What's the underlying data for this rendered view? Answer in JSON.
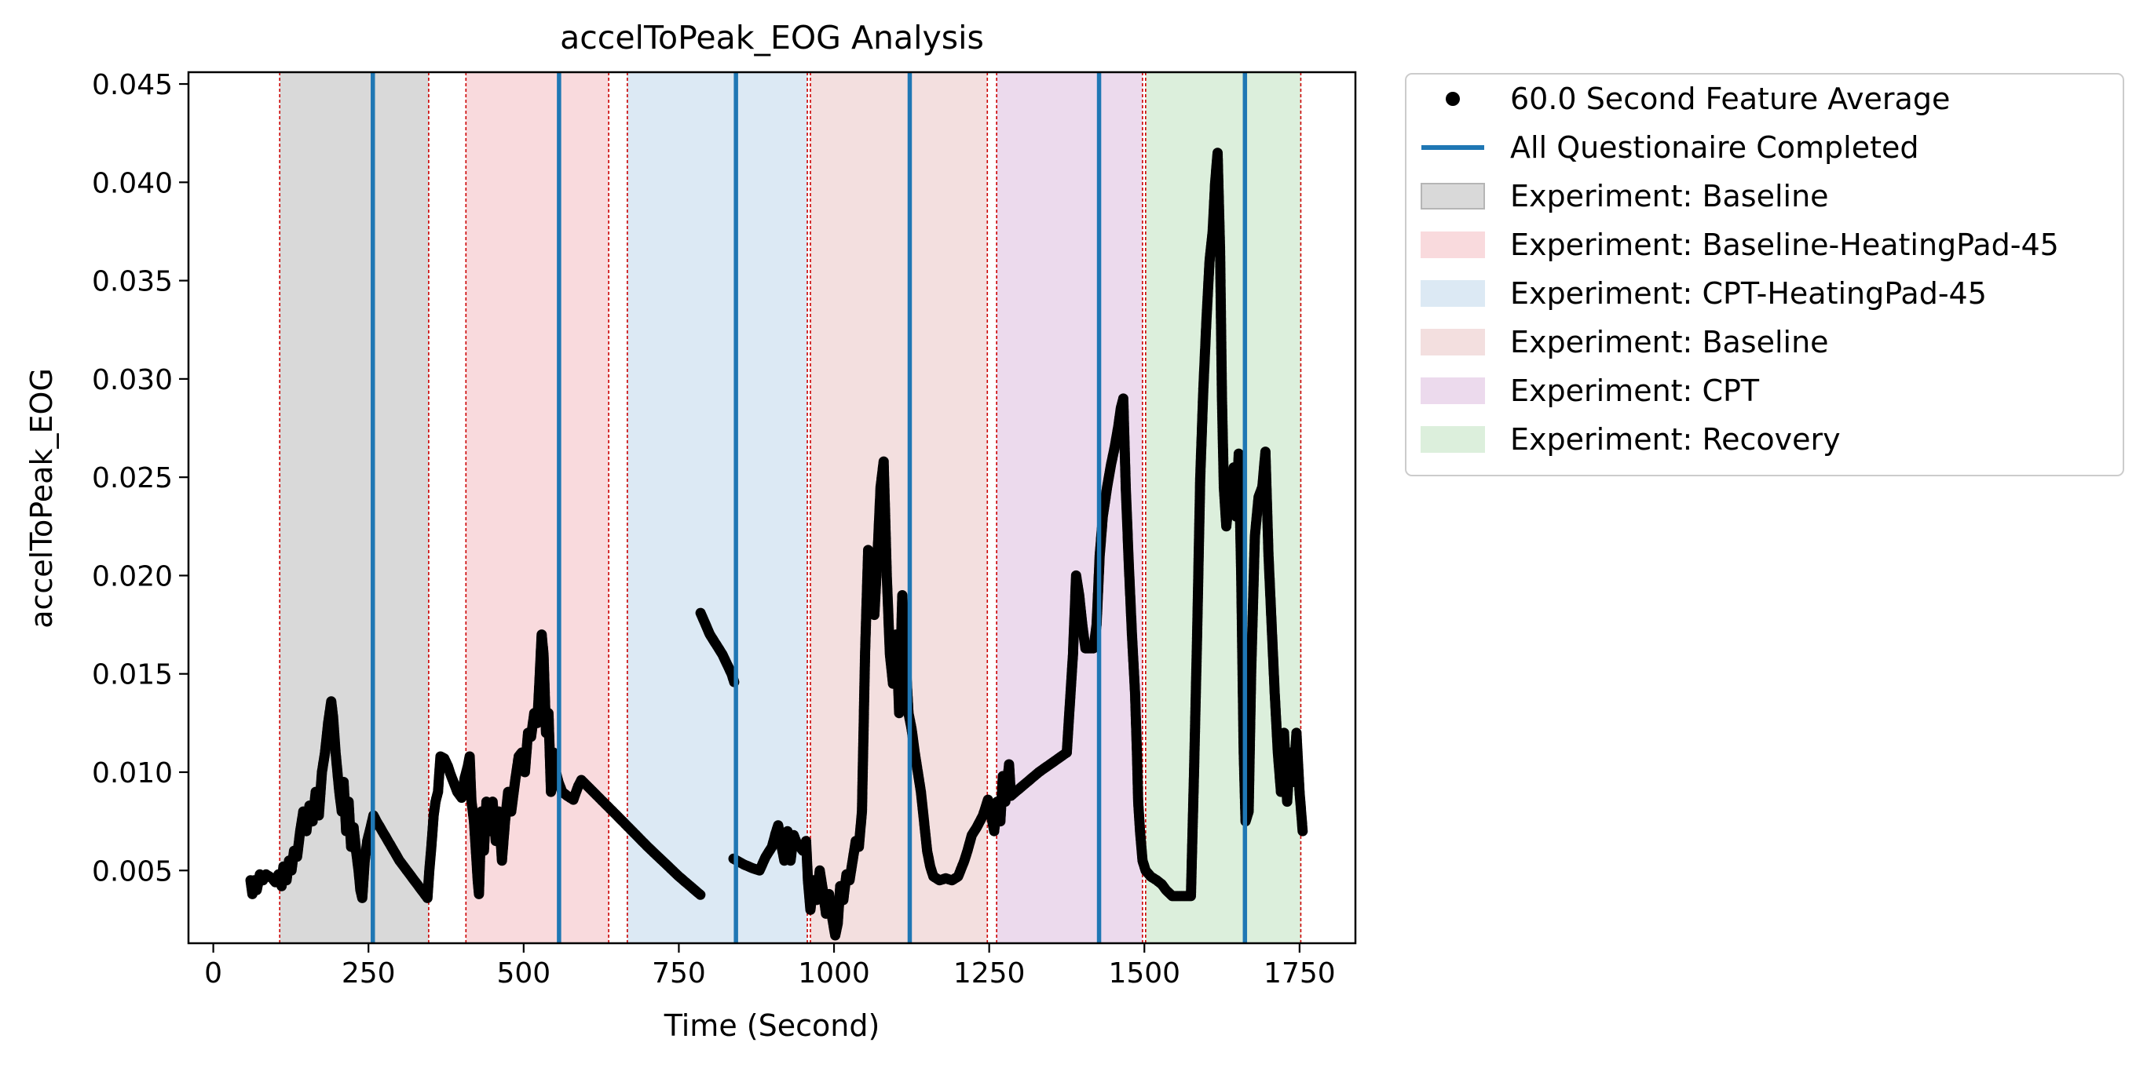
{
  "chart_data": {
    "type": "scatter",
    "title": "accelToPeak_EOG Analysis",
    "xlabel": "Time (Second)",
    "ylabel": "accelToPeak_EOG",
    "xlim": [
      -40,
      1840
    ],
    "ylim": [
      0.0013,
      0.0456
    ],
    "xticks": [
      0,
      250,
      500,
      750,
      1000,
      1250,
      1500,
      1750
    ],
    "xtick_labels": [
      "0",
      "250",
      "500",
      "750",
      "1000",
      "1250",
      "1500",
      "1750"
    ],
    "yticks": [
      0.005,
      0.01,
      0.015,
      0.02,
      0.025,
      0.03,
      0.035,
      0.04,
      0.045
    ],
    "ytick_labels": [
      "0.005",
      "0.010",
      "0.015",
      "0.020",
      "0.025",
      "0.030",
      "0.035",
      "0.040",
      "0.045"
    ],
    "grid": false,
    "legend_position": "outside-right-top",
    "legend": [
      {
        "label": "60.0 Second Feature Average",
        "kind": "marker",
        "color": "#000000"
      },
      {
        "label": "All Questionaire Completed",
        "kind": "line",
        "color": "#1f77b4"
      },
      {
        "label": "Experiment: Baseline",
        "kind": "patch",
        "color": "#d9d9d9"
      },
      {
        "label": "Experiment: Baseline-HeatingPad-45",
        "kind": "patch",
        "color": "#f9dadd"
      },
      {
        "label": "Experiment: CPT-HeatingPad-45",
        "kind": "patch",
        "color": "#dce9f4"
      },
      {
        "label": "Experiment: Baseline",
        "kind": "patch",
        "color": "#f3dfdf"
      },
      {
        "label": "Experiment: CPT",
        "kind": "patch",
        "color": "#ecdaed"
      },
      {
        "label": "Experiment: Recovery",
        "kind": "patch",
        "color": "#dcefdc"
      }
    ],
    "regions": [
      {
        "label": "Experiment: Baseline",
        "start": 107,
        "end": 347,
        "color": "#d9d9d9"
      },
      {
        "label": "Experiment: Baseline-HeatingPad-45",
        "start": 407,
        "end": 637,
        "color": "#f9dadd"
      },
      {
        "label": "Experiment: CPT-HeatingPad-45",
        "start": 667,
        "end": 957,
        "color": "#dce9f4"
      },
      {
        "label": "Experiment: Baseline",
        "start": 962,
        "end": 1247,
        "color": "#f3dfdf"
      },
      {
        "label": "Experiment: CPT",
        "start": 1262,
        "end": 1497,
        "color": "#ecdaed"
      },
      {
        "label": "Experiment: Recovery",
        "start": 1502,
        "end": 1752,
        "color": "#dcefdc"
      }
    ],
    "questionnaire_lines": [
      257,
      557,
      842,
      1122,
      1427,
      1662
    ],
    "series": [
      {
        "name": "60.0 Second Feature Average",
        "color": "#000000",
        "polyline": [
          [
            60,
            0.0045
          ],
          [
            63,
            0.0038
          ],
          [
            66,
            0.0045
          ],
          [
            70,
            0.004
          ],
          [
            75,
            0.0048
          ],
          [
            80,
            0.0045
          ],
          [
            85,
            0.0048
          ],
          [
            90,
            0.0047
          ],
          [
            95,
            0.0046
          ],
          [
            100,
            0.0044
          ],
          [
            105,
            0.0048
          ],
          [
            110,
            0.0042
          ],
          [
            113,
            0.0052
          ],
          [
            118,
            0.0045
          ],
          [
            122,
            0.0055
          ],
          [
            126,
            0.005
          ],
          [
            130,
            0.006
          ],
          [
            135,
            0.0057
          ],
          [
            140,
            0.007
          ],
          [
            145,
            0.008
          ],
          [
            150,
            0.007
          ],
          [
            155,
            0.0083
          ],
          [
            160,
            0.0075
          ],
          [
            165,
            0.009
          ],
          [
            170,
            0.0078
          ],
          [
            175,
            0.01
          ],
          [
            180,
            0.011
          ],
          [
            185,
            0.0125
          ],
          [
            190,
            0.0136
          ],
          [
            193,
            0.0128
          ],
          [
            197,
            0.011
          ],
          [
            200,
            0.01
          ],
          [
            203,
            0.009
          ],
          [
            207,
            0.008
          ],
          [
            210,
            0.0095
          ],
          [
            214,
            0.007
          ],
          [
            218,
            0.0085
          ],
          [
            222,
            0.0062
          ],
          [
            226,
            0.0072
          ],
          [
            230,
            0.006
          ],
          [
            234,
            0.005
          ],
          [
            237,
            0.004
          ],
          [
            240,
            0.0036
          ],
          [
            244,
            0.0055
          ],
          [
            248,
            0.0065
          ],
          [
            252,
            0.007
          ],
          [
            258,
            0.0078
          ],
          [
            263,
            0.0075
          ],
          [
            300,
            0.0055
          ],
          [
            345,
            0.0036
          ],
          [
            348,
            0.005
          ],
          [
            352,
            0.0065
          ],
          [
            355,
            0.0078
          ],
          [
            358,
            0.0085
          ],
          [
            362,
            0.009
          ],
          [
            366,
            0.0108
          ],
          [
            372,
            0.0107
          ],
          [
            378,
            0.0103
          ],
          [
            382,
            0.0099
          ],
          [
            387,
            0.0095
          ],
          [
            393,
            0.009
          ],
          [
            400,
            0.0087
          ],
          [
            405,
            0.0097
          ],
          [
            410,
            0.0103
          ],
          [
            413,
            0.0108
          ],
          [
            416,
            0.0085
          ],
          [
            420,
            0.0075
          ],
          [
            423,
            0.006
          ],
          [
            426,
            0.0045
          ],
          [
            428,
            0.0038
          ],
          [
            432,
            0.008
          ],
          [
            436,
            0.006
          ],
          [
            440,
            0.0085
          ],
          [
            445,
            0.007
          ],
          [
            450,
            0.0085
          ],
          [
            455,
            0.0065
          ],
          [
            460,
            0.008
          ],
          [
            465,
            0.0055
          ],
          [
            470,
            0.0075
          ],
          [
            475,
            0.009
          ],
          [
            480,
            0.008
          ],
          [
            486,
            0.0095
          ],
          [
            492,
            0.0108
          ],
          [
            497,
            0.011
          ],
          [
            502,
            0.01
          ],
          [
            507,
            0.012
          ],
          [
            512,
            0.0118
          ],
          [
            517,
            0.013
          ],
          [
            522,
            0.0125
          ],
          [
            526,
            0.015
          ],
          [
            529,
            0.017
          ],
          [
            532,
            0.016
          ],
          [
            536,
            0.012
          ],
          [
            540,
            0.013
          ],
          [
            544,
            0.009
          ],
          [
            548,
            0.011
          ],
          [
            552,
            0.01
          ],
          [
            556,
            0.0095
          ],
          [
            562,
            0.009
          ],
          [
            570,
            0.0088
          ],
          [
            580,
            0.0086
          ],
          [
            588,
            0.0093
          ],
          [
            593,
            0.0096
          ],
          [
            650,
            0.0078
          ],
          [
            700,
            0.0062
          ],
          [
            750,
            0.0047
          ],
          [
            787,
            0.0037
          ],
          [
            null,
            null
          ],
          [
            785,
            0.0181
          ],
          [
            800,
            0.017
          ],
          [
            820,
            0.016
          ],
          [
            835,
            0.015
          ],
          [
            840,
            0.0145
          ],
          [
            null,
            null
          ],
          [
            838,
            0.0056
          ],
          [
            855,
            0.0053
          ],
          [
            870,
            0.0051
          ],
          [
            880,
            0.005
          ],
          [
            890,
            0.0057
          ],
          [
            900,
            0.0062
          ],
          [
            906,
            0.0069
          ],
          [
            910,
            0.0073
          ],
          [
            915,
            0.0063
          ],
          [
            920,
            0.0055
          ],
          [
            925,
            0.007
          ],
          [
            930,
            0.0055
          ],
          [
            935,
            0.0068
          ],
          [
            940,
            0.0064
          ],
          [
            945,
            0.0062
          ],
          [
            950,
            0.006
          ],
          [
            955,
            0.0065
          ],
          [
            958,
            0.0045
          ],
          [
            962,
            0.003
          ],
          [
            967,
            0.0045
          ],
          [
            972,
            0.0035
          ],
          [
            977,
            0.005
          ],
          [
            982,
            0.004
          ],
          [
            987,
            0.0028
          ],
          [
            992,
            0.0038
          ],
          [
            997,
            0.0026
          ],
          [
            1002,
            0.0017
          ],
          [
            1006,
            0.0023
          ],
          [
            1010,
            0.0042
          ],
          [
            1015,
            0.0035
          ],
          [
            1020,
            0.0048
          ],
          [
            1025,
            0.0045
          ],
          [
            1030,
            0.0055
          ],
          [
            1035,
            0.0065
          ],
          [
            1040,
            0.0062
          ],
          [
            1045,
            0.008
          ],
          [
            1050,
            0.016
          ],
          [
            1055,
            0.0213
          ],
          [
            1060,
            0.02
          ],
          [
            1065,
            0.018
          ],
          [
            1070,
            0.021
          ],
          [
            1075,
            0.0245
          ],
          [
            1080,
            0.0258
          ],
          [
            1085,
            0.02
          ],
          [
            1090,
            0.016
          ],
          [
            1095,
            0.0145
          ],
          [
            1100,
            0.017
          ],
          [
            1105,
            0.013
          ],
          [
            1110,
            0.019
          ],
          [
            1115,
            0.016
          ],
          [
            1120,
            0.013
          ],
          [
            1125,
            0.0122
          ],
          [
            1130,
            0.011
          ],
          [
            1135,
            0.01
          ],
          [
            1140,
            0.009
          ],
          [
            1145,
            0.0075
          ],
          [
            1150,
            0.006
          ],
          [
            1155,
            0.0052
          ],
          [
            1160,
            0.0047
          ],
          [
            1170,
            0.0045
          ],
          [
            1180,
            0.0046
          ],
          [
            1190,
            0.0045
          ],
          [
            1200,
            0.0047
          ],
          [
            1210,
            0.0055
          ],
          [
            1215,
            0.006
          ],
          [
            1222,
            0.0068
          ],
          [
            1230,
            0.0072
          ],
          [
            1240,
            0.0078
          ],
          [
            1248,
            0.0086
          ],
          [
            1252,
            0.008
          ],
          [
            1258,
            0.007
          ],
          [
            1263,
            0.0085
          ],
          [
            1268,
            0.0075
          ],
          [
            1272,
            0.0098
          ],
          [
            1276,
            0.0085
          ],
          [
            1282,
            0.0104
          ],
          [
            1285,
            0.0088
          ],
          [
            1330,
            0.01
          ],
          [
            1375,
            0.011
          ],
          [
            1380,
            0.0135
          ],
          [
            1385,
            0.016
          ],
          [
            1390,
            0.02
          ],
          [
            1395,
            0.019
          ],
          [
            1400,
            0.0175
          ],
          [
            1405,
            0.0163
          ],
          [
            1410,
            0.0163
          ],
          [
            1418,
            0.0163
          ],
          [
            1423,
            0.0175
          ],
          [
            1428,
            0.021
          ],
          [
            1433,
            0.023
          ],
          [
            1440,
            0.0245
          ],
          [
            1446,
            0.0256
          ],
          [
            1452,
            0.0265
          ],
          [
            1458,
            0.0276
          ],
          [
            1462,
            0.0285
          ],
          [
            1466,
            0.029
          ],
          [
            1470,
            0.0245
          ],
          [
            1475,
            0.0205
          ],
          [
            1480,
            0.017
          ],
          [
            1485,
            0.014
          ],
          [
            1488,
            0.011
          ],
          [
            1490,
            0.0085
          ],
          [
            1493,
            0.007
          ],
          [
            1497,
            0.0055
          ],
          [
            1502,
            0.005
          ],
          [
            1510,
            0.0047
          ],
          [
            1520,
            0.0045
          ],
          [
            1528,
            0.0043
          ],
          [
            1535,
            0.004
          ],
          [
            1545,
            0.0037
          ],
          [
            1560,
            0.0037
          ],
          [
            1575,
            0.0037
          ],
          [
            1580,
            0.01
          ],
          [
            1585,
            0.017
          ],
          [
            1590,
            0.025
          ],
          [
            1595,
            0.0295
          ],
          [
            1600,
            0.033
          ],
          [
            1605,
            0.036
          ],
          [
            1610,
            0.0375
          ],
          [
            1614,
            0.04
          ],
          [
            1618,
            0.0415
          ],
          [
            1622,
            0.0365
          ],
          [
            1625,
            0.029
          ],
          [
            1628,
            0.0245
          ],
          [
            1632,
            0.0225
          ],
          [
            1638,
            0.0245
          ],
          [
            1644,
            0.0255
          ],
          [
            1648,
            0.023
          ],
          [
            1652,
            0.0262
          ],
          [
            1656,
            0.02
          ],
          [
            1660,
            0.011
          ],
          [
            1663,
            0.0075
          ],
          [
            1668,
            0.008
          ],
          [
            1672,
            0.015
          ],
          [
            1678,
            0.022
          ],
          [
            1684,
            0.024
          ],
          [
            1690,
            0.0245
          ],
          [
            1695,
            0.0263
          ],
          [
            1700,
            0.021
          ],
          [
            1705,
            0.0175
          ],
          [
            1710,
            0.014
          ],
          [
            1715,
            0.011
          ],
          [
            1720,
            0.009
          ],
          [
            1725,
            0.012
          ],
          [
            1730,
            0.0085
          ],
          [
            1735,
            0.011
          ],
          [
            1740,
            0.0095
          ],
          [
            1745,
            0.012
          ],
          [
            1750,
            0.009
          ],
          [
            1755,
            0.007
          ]
        ]
      }
    ]
  }
}
